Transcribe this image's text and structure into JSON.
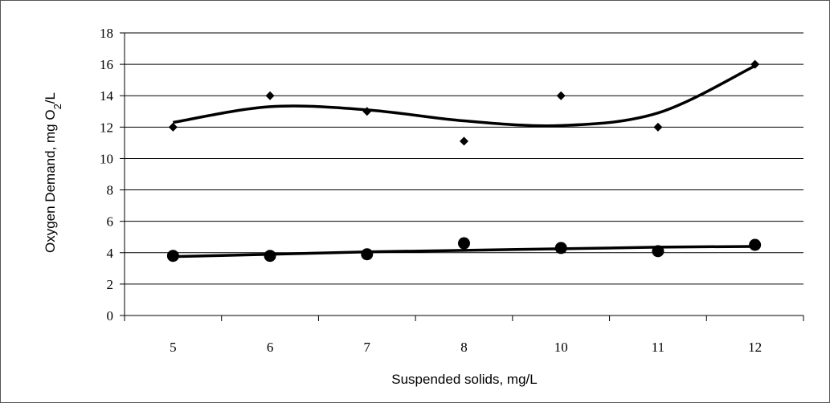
{
  "chart_data": {
    "type": "line",
    "title": "",
    "xlabel": "Suspended solids, mg/L",
    "ylabel": {
      "prefix": "Oxygen Demand, mg  O",
      "subscript": "2",
      "suffix": "/L"
    },
    "categories": [
      "5",
      "6",
      "7",
      "8",
      "10",
      "11",
      "12"
    ],
    "ylim": [
      0,
      18
    ],
    "yticks": [
      0,
      2,
      4,
      6,
      8,
      10,
      12,
      14,
      16,
      18
    ],
    "grid": "horizontal",
    "legend": "none",
    "series": [
      {
        "marker": "diamond",
        "color": "#000000",
        "values": [
          12.0,
          14.0,
          13.0,
          11.1,
          14.0,
          12.0,
          16.0
        ],
        "trend": [
          12.3,
          13.3,
          13.1,
          12.4,
          12.1,
          12.9,
          15.9
        ]
      },
      {
        "marker": "circle",
        "color": "#000000",
        "values": [
          3.8,
          3.8,
          3.9,
          4.6,
          4.3,
          4.1,
          4.5
        ],
        "trend": [
          3.75,
          3.9,
          4.05,
          4.15,
          4.25,
          4.35,
          4.4
        ]
      }
    ]
  }
}
